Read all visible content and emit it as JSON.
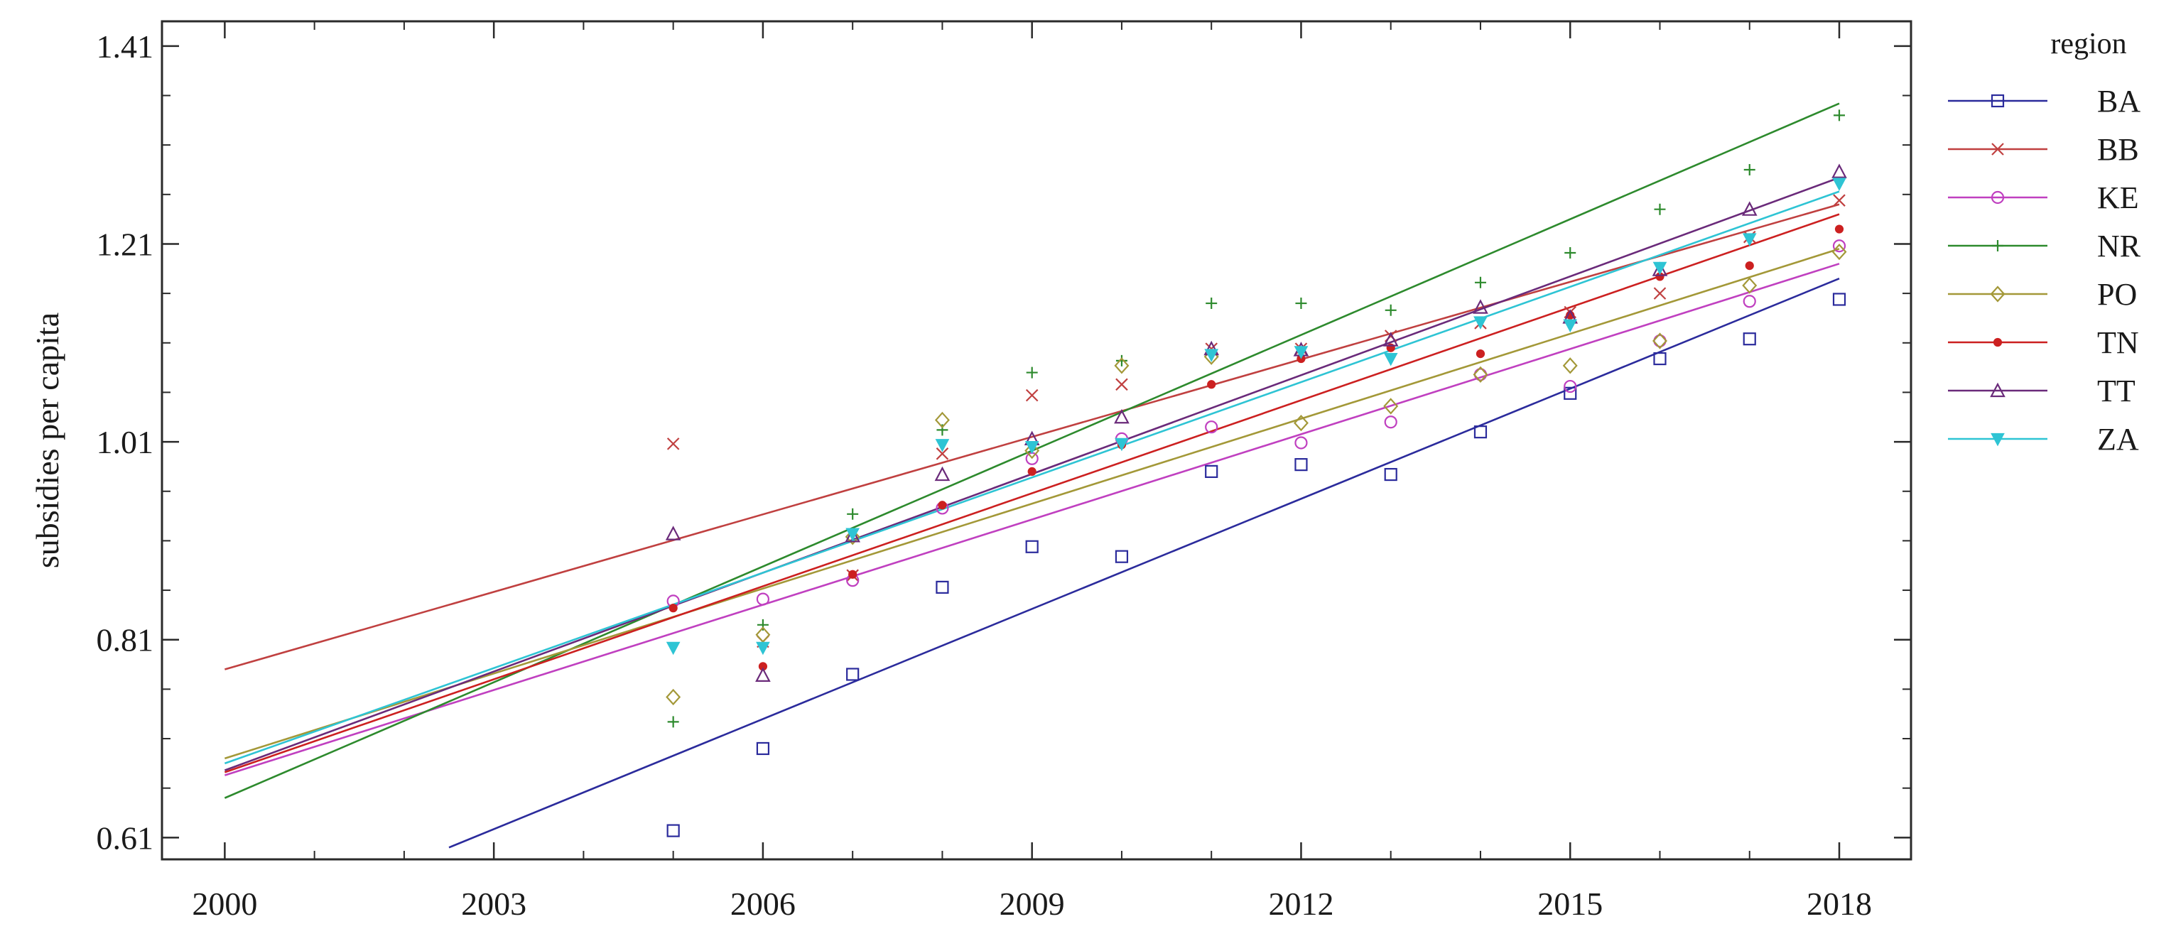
{
  "chart_data": {
    "type": "scatter",
    "title": "",
    "xlabel": "",
    "ylabel": "subsidies per capita",
    "xlim": [
      1999.3,
      2018.8
    ],
    "ylim": [
      0.588,
      1.435
    ],
    "xticks": [
      2000,
      2003,
      2006,
      2009,
      2012,
      2015,
      2018
    ],
    "xtick_labels": [
      "2000",
      "2003",
      "2006",
      "2009",
      "2012",
      "2015",
      "2018"
    ],
    "yticks": [
      0.61,
      0.81,
      1.01,
      1.21,
      1.41
    ],
    "ytick_labels": [
      "0.61",
      "0.81",
      "1.01",
      "1.21",
      "1.41"
    ],
    "grid": false,
    "legend": {
      "title": "region",
      "position": "right"
    },
    "series": [
      {
        "name": "BA",
        "color": "#2b2b9c",
        "marker": "square",
        "x": [
          2005,
          2006,
          2007,
          2008,
          2009,
          2010,
          2011,
          2012,
          2013,
          2014,
          2015,
          2016,
          2017,
          2018
        ],
        "y": [
          0.617,
          0.7,
          0.775,
          0.863,
          0.904,
          0.894,
          0.98,
          0.987,
          0.977,
          1.02,
          1.059,
          1.094,
          1.114,
          1.154
        ],
        "fit": {
          "x": [
            2002.5,
            2018
          ],
          "y": [
            0.6,
            1.175
          ]
        }
      },
      {
        "name": "BB",
        "color": "#c04040",
        "marker": "x",
        "x": [
          2005,
          2006,
          2007,
          2008,
          2009,
          2010,
          2011,
          2012,
          2013,
          2014,
          2015,
          2016,
          2017,
          2018
        ],
        "y": [
          1.008,
          0.808,
          0.875,
          0.998,
          1.057,
          1.068,
          1.104,
          1.104,
          1.117,
          1.13,
          1.141,
          1.16,
          1.217,
          1.254
        ],
        "fit": {
          "x": [
            2000,
            2018
          ],
          "y": [
            0.78,
            1.25
          ]
        }
      },
      {
        "name": "KE",
        "color": "#c040c0",
        "marker": "circle",
        "x": [
          2005,
          2006,
          2007,
          2008,
          2009,
          2010,
          2011,
          2012,
          2013,
          2014,
          2015,
          2016,
          2017,
          2018
        ],
        "y": [
          0.849,
          0.851,
          0.87,
          0.943,
          0.993,
          1.013,
          1.025,
          1.009,
          1.03,
          1.078,
          1.066,
          1.112,
          1.152,
          1.208
        ],
        "fit": {
          "x": [
            2000,
            2018
          ],
          "y": [
            0.673,
            1.19
          ]
        }
      },
      {
        "name": "NR",
        "color": "#2d8a2d",
        "marker": "plus",
        "x": [
          2005,
          2006,
          2007,
          2008,
          2009,
          2010,
          2011,
          2012,
          2013,
          2014,
          2015,
          2016,
          2017,
          2018
        ],
        "y": [
          0.727,
          0.825,
          0.937,
          1.022,
          1.08,
          1.092,
          1.15,
          1.15,
          1.143,
          1.171,
          1.201,
          1.245,
          1.285,
          1.34
        ],
        "fit": {
          "x": [
            2000,
            2018
          ],
          "y": [
            0.65,
            1.352
          ]
        }
      },
      {
        "name": "PO",
        "color": "#a39838",
        "marker": "diamond",
        "x": [
          2005,
          2006,
          2007,
          2008,
          2009,
          2010,
          2011,
          2012,
          2013,
          2014,
          2015,
          2016,
          2017,
          2018
        ],
        "y": [
          0.752,
          0.815,
          0.914,
          1.032,
          1.001,
          1.087,
          1.096,
          1.029,
          1.046,
          1.078,
          1.087,
          1.112,
          1.168,
          1.202
        ],
        "fit": {
          "x": [
            2000,
            2018
          ],
          "y": [
            0.69,
            1.205
          ]
        }
      },
      {
        "name": "TN",
        "color": "#cc2020",
        "marker": "dot",
        "x": [
          2005,
          2006,
          2007,
          2008,
          2009,
          2010,
          2011,
          2012,
          2013,
          2014,
          2015,
          2016,
          2017,
          2018
        ],
        "y": [
          0.842,
          0.783,
          0.876,
          0.946,
          0.98,
          1.007,
          1.068,
          1.094,
          1.105,
          1.099,
          1.138,
          1.177,
          1.188,
          1.225
        ],
        "fit": {
          "x": [
            2000,
            2018
          ],
          "y": [
            0.676,
            1.24
          ]
        }
      },
      {
        "name": "TT",
        "color": "#6a2a7a",
        "marker": "triangle",
        "x": [
          2005,
          2006,
          2007,
          2008,
          2009,
          2010,
          2011,
          2012,
          2013,
          2014,
          2015,
          2016,
          2017,
          2018
        ],
        "y": [
          0.917,
          0.774,
          0.915,
          0.977,
          1.013,
          1.035,
          1.104,
          1.103,
          1.113,
          1.146,
          1.136,
          1.184,
          1.245,
          1.283
        ],
        "fit": {
          "x": [
            2000,
            2018
          ],
          "y": [
            0.678,
            1.277
          ]
        }
      },
      {
        "name": "ZA",
        "color": "#2ec4d4",
        "marker": "triangle-down",
        "x": [
          2005,
          2006,
          2007,
          2008,
          2009,
          2010,
          2011,
          2012,
          2013,
          2014,
          2015,
          2016,
          2017,
          2018
        ],
        "y": [
          0.802,
          0.802,
          0.917,
          1.007,
          1.005,
          1.008,
          1.098,
          1.101,
          1.094,
          1.131,
          1.128,
          1.186,
          1.215,
          1.271
        ],
        "fit": {
          "x": [
            2000,
            2018
          ],
          "y": [
            0.685,
            1.263
          ]
        }
      }
    ]
  }
}
